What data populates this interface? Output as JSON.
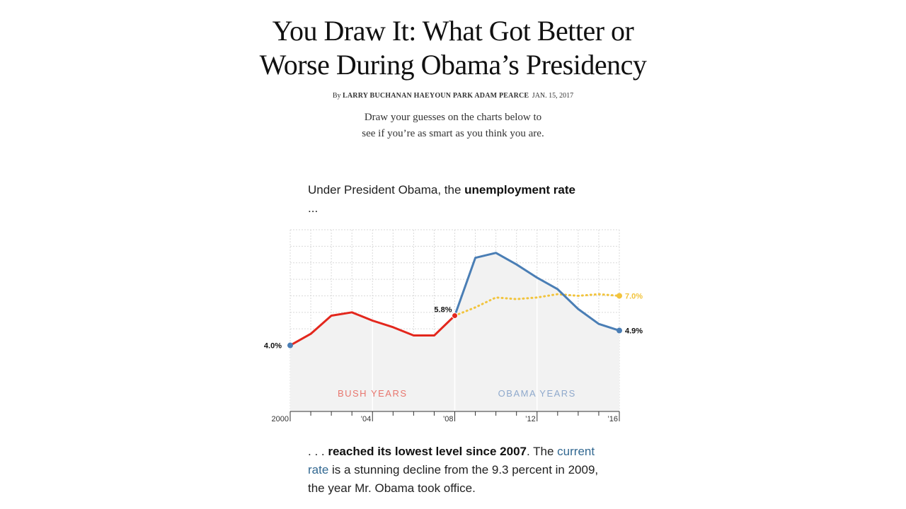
{
  "article": {
    "headline_line1": "You Draw It: What Got Better or",
    "headline_line2": "Worse During Obama’s Presidency",
    "byline_prefix": "By",
    "authors": "LARRY BUCHANAN HAEYOUN PARK ADAM PEARCE",
    "date": "JAN. 15, 2017",
    "intro_line1": "Draw your guesses on the charts below to",
    "intro_line2": "see if you’re as smart as you think you are."
  },
  "lead": {
    "part1": "Under President Obama, the ",
    "bold": "unemployment rate",
    "part2": " ..."
  },
  "follow": {
    "ellipsis": ". . . ",
    "bold": "reached its lowest level since 2007",
    "part1": ". The ",
    "link": "current rate",
    "part2": " is a stunning decline from the 9.3 percent in 2009, the year Mr. Obama took office."
  },
  "colors": {
    "bush": "#e3271d",
    "obama": "#4a7eb5",
    "guess": "#f2c43d",
    "bush_label": "#e8766e",
    "obama_label": "#8fa9cc",
    "area": "#f2f2f2",
    "grid": "#d9d9d9"
  },
  "chart_data": {
    "type": "line",
    "xlim": [
      2000,
      2016
    ],
    "ylim": [
      0,
      11
    ],
    "x_ticks": [
      {
        "value": 2000,
        "label": "2000"
      },
      {
        "value": 2004,
        "label": "’04"
      },
      {
        "value": 2008,
        "label": "’08"
      },
      {
        "value": 2012,
        "label": "’12"
      },
      {
        "value": 2016,
        "label": "’16"
      }
    ],
    "eras": [
      {
        "label": "BUSH YEARS",
        "center": 2004
      },
      {
        "label": "OBAMA YEARS",
        "center": 2012
      }
    ],
    "series": [
      {
        "key": "bush",
        "x": [
          2000,
          2001,
          2002,
          2003,
          2004,
          2005,
          2006,
          2007,
          2008
        ],
        "values": [
          4.0,
          4.7,
          5.8,
          6.0,
          5.5,
          5.1,
          4.6,
          4.6,
          5.8
        ]
      },
      {
        "key": "obama",
        "x": [
          2008,
          2009,
          2010,
          2011,
          2012,
          2013,
          2014,
          2015,
          2016
        ],
        "values": [
          5.8,
          9.3,
          9.6,
          8.9,
          8.1,
          7.4,
          6.2,
          5.3,
          4.9
        ]
      },
      {
        "key": "guess",
        "x": [
          2008,
          2009,
          2010,
          2011,
          2012,
          2013,
          2014,
          2015,
          2016
        ],
        "values": [
          5.8,
          6.3,
          6.9,
          6.8,
          6.9,
          7.1,
          7.0,
          7.1,
          7.0
        ]
      }
    ],
    "labels": [
      {
        "text": "4.0%",
        "x": 2000,
        "y": 4.0,
        "side": "left",
        "color": "#121212"
      },
      {
        "text": "5.8%",
        "x": 2008,
        "y": 5.8,
        "side": "above-left",
        "color": "#121212"
      },
      {
        "text": "7.0%",
        "x": 2016,
        "y": 7.0,
        "side": "right",
        "color": "#f2c43d"
      },
      {
        "text": "4.9%",
        "x": 2016,
        "y": 4.9,
        "side": "right",
        "color": "#121212"
      }
    ]
  }
}
